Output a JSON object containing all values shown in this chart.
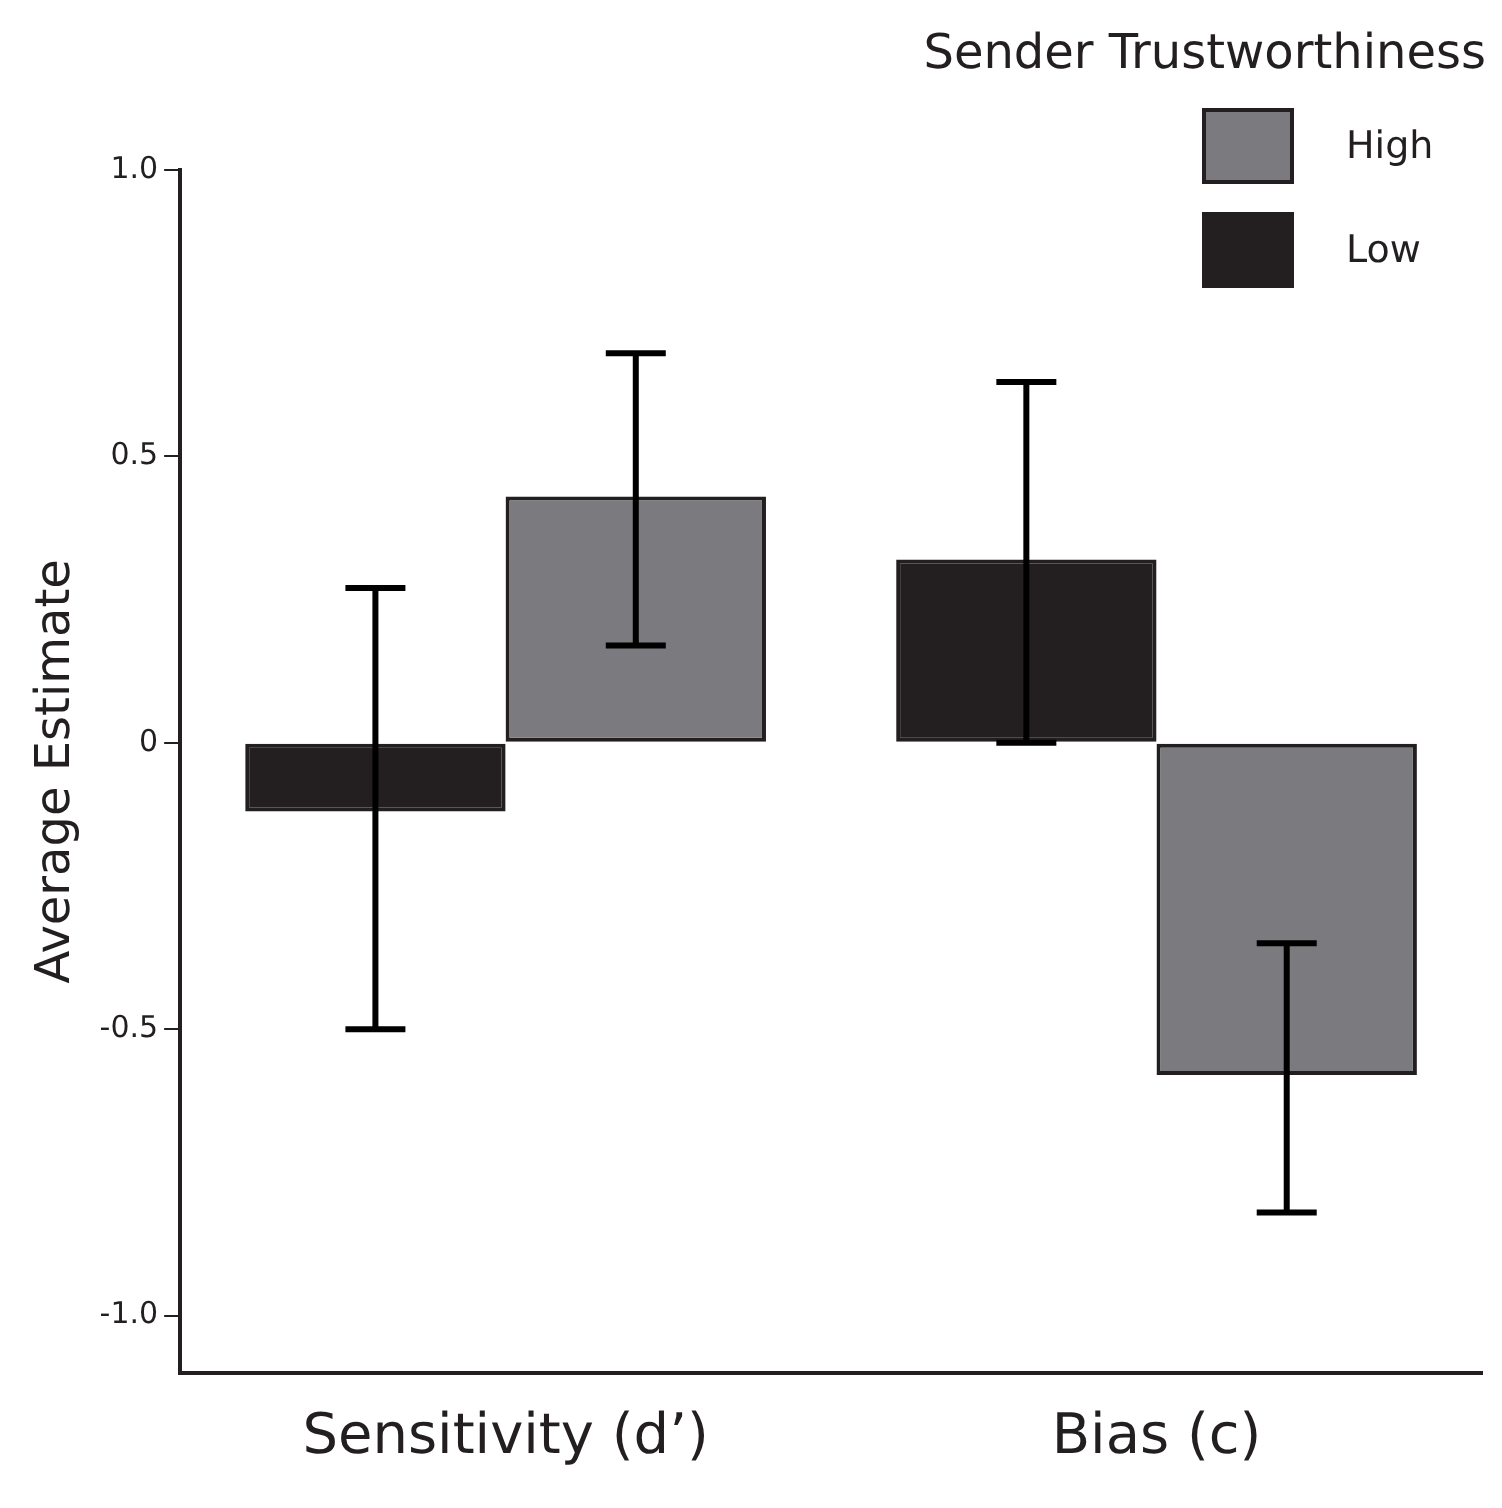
{
  "chart_data": {
    "type": "bar",
    "ylabel": "Average Estimate",
    "legend_title": "Sender Trustworthiness",
    "legend": "top right",
    "grid": false,
    "categories": [
      "Sensitivity (d’)",
      "Bias (c)"
    ],
    "ylim": [
      -1.1,
      1.0
    ],
    "yticks": [
      {
        "value": 1.0,
        "label": "1.0"
      },
      {
        "value": 0.5,
        "label": "0.5"
      },
      0,
      {
        "value": -0.5,
        "label": "-0.5"
      },
      {
        "value": -1.0,
        "label": "-1.0"
      }
    ],
    "series": [
      {
        "name": "Low",
        "color": "#231f20",
        "values": [
          -0.12,
          0.32
        ],
        "errors": [
          [
            -0.5,
            0.27
          ],
          [
            0.0,
            0.63
          ]
        ]
      },
      {
        "name": "High",
        "color": "#7b7b7f",
        "values": [
          0.43,
          -0.58
        ],
        "errors": [
          [
            0.17,
            0.68
          ],
          [
            -0.82,
            -0.35
          ]
        ]
      }
    ]
  }
}
